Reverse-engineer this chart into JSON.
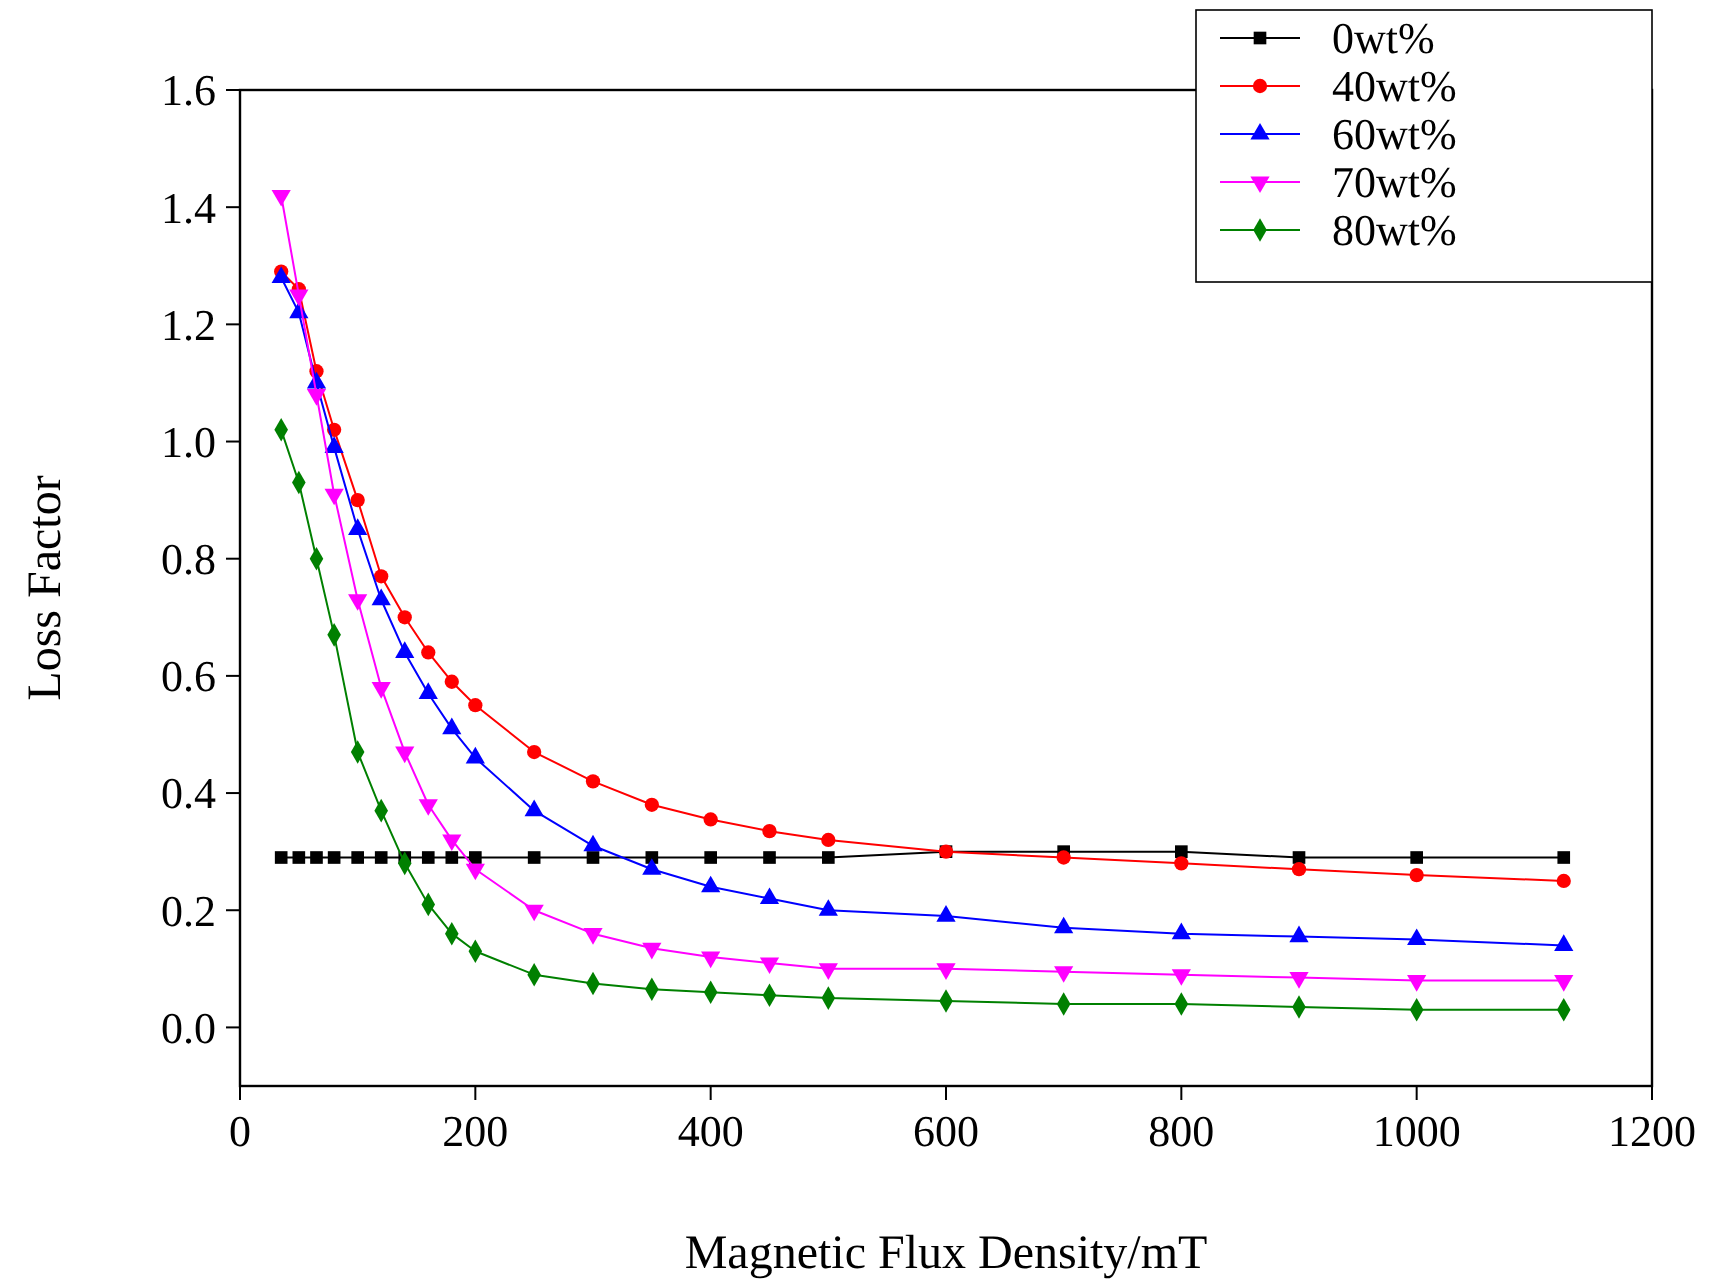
{
  "chart_data": {
    "type": "line",
    "xlabel": "Magnetic Flux Density/mT",
    "ylabel": "Loss Factor",
    "x": [
      35,
      50,
      65,
      80,
      100,
      120,
      140,
      160,
      180,
      200,
      250,
      300,
      350,
      400,
      450,
      500,
      600,
      700,
      800,
      900,
      1000,
      1125
    ],
    "series": [
      {
        "name": "0wt%",
        "color": "#000000",
        "marker": "square",
        "values": [
          0.29,
          0.29,
          0.29,
          0.29,
          0.29,
          0.29,
          0.29,
          0.29,
          0.29,
          0.29,
          0.29,
          0.29,
          0.29,
          0.29,
          0.29,
          0.29,
          0.3,
          0.3,
          0.3,
          0.29,
          0.29,
          0.29
        ]
      },
      {
        "name": "40wt%",
        "color": "#ff0000",
        "marker": "circle",
        "values": [
          1.29,
          1.26,
          1.12,
          1.02,
          0.9,
          0.77,
          0.7,
          0.64,
          0.59,
          0.55,
          0.47,
          0.42,
          0.38,
          0.355,
          0.335,
          0.32,
          0.3,
          0.29,
          0.28,
          0.27,
          0.26,
          0.25
        ]
      },
      {
        "name": "60wt%",
        "color": "#0000ff",
        "marker": "triangle",
        "values": [
          1.28,
          1.22,
          1.1,
          0.99,
          0.85,
          0.73,
          0.64,
          0.57,
          0.51,
          0.46,
          0.37,
          0.31,
          0.27,
          0.24,
          0.22,
          0.2,
          0.19,
          0.17,
          0.16,
          0.155,
          0.15,
          0.14
        ]
      },
      {
        "name": "70wt%",
        "color": "#ff00ff",
        "marker": "triangle-down",
        "values": [
          1.42,
          1.25,
          1.08,
          0.91,
          0.73,
          0.58,
          0.47,
          0.38,
          0.32,
          0.27,
          0.2,
          0.16,
          0.135,
          0.12,
          0.11,
          0.1,
          0.1,
          0.095,
          0.09,
          0.085,
          0.08,
          0.08
        ]
      },
      {
        "name": "80wt%",
        "color": "#008000",
        "marker": "diamond",
        "values": [
          1.02,
          0.93,
          0.8,
          0.67,
          0.47,
          0.37,
          0.28,
          0.21,
          0.16,
          0.13,
          0.09,
          0.075,
          0.065,
          0.06,
          0.055,
          0.05,
          0.045,
          0.04,
          0.04,
          0.035,
          0.03,
          0.03
        ]
      }
    ],
    "xlim": [
      0,
      1200
    ],
    "xticks": [
      0,
      200,
      400,
      600,
      800,
      1000,
      1200
    ],
    "ylim": [
      -0.1,
      1.6
    ],
    "yticks": [
      {
        "value": 0,
        "label": "0.0"
      },
      0.2,
      0.4,
      0.6,
      0.8,
      {
        "value": 1,
        "label": "1.0"
      },
      1.2,
      1.4,
      1.6
    ],
    "grid": false,
    "legend": "top right",
    "line_style": "solid"
  }
}
